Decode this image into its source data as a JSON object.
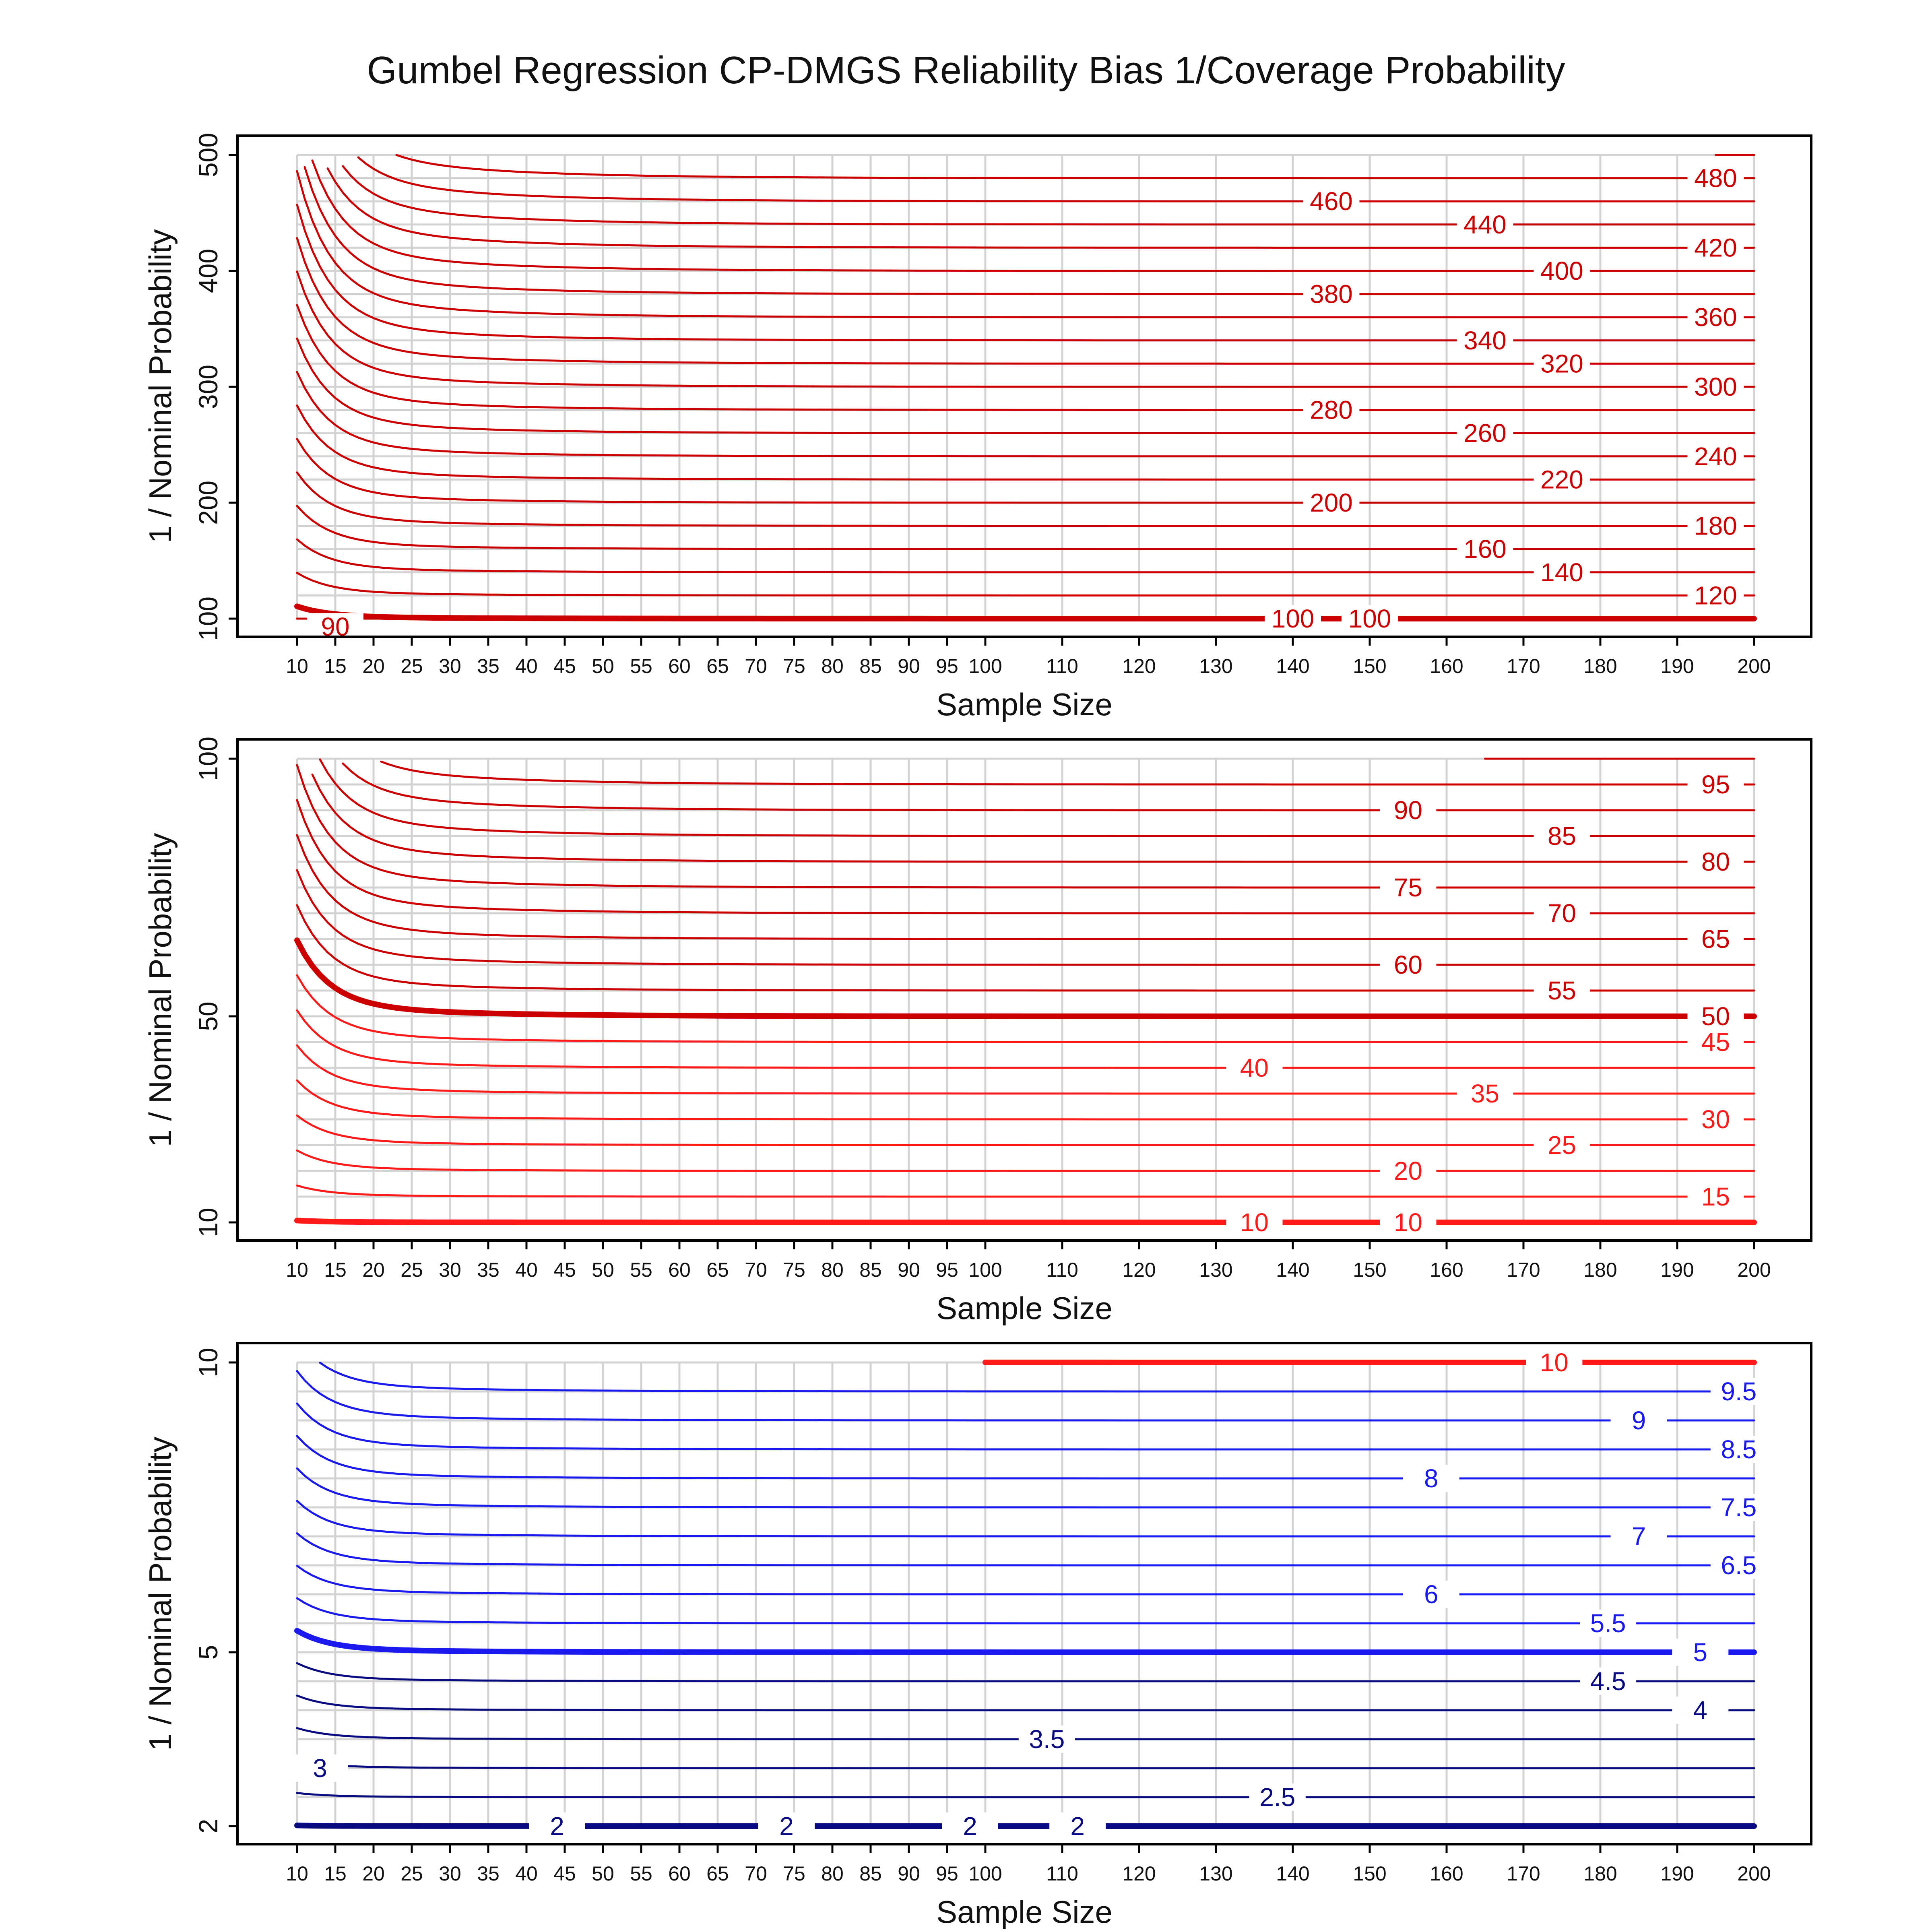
{
  "title": "Gumbel Regression CP-DMGS Reliability Bias 1/Coverage Probability",
  "colors": {
    "red": "#cc0000",
    "bright_red": "#ff1a1a",
    "blue": "#1a1aee",
    "dark_blue": "#0a0a80",
    "grid": "#d3d3d3",
    "frame": "#000000"
  },
  "chart_data": [
    {
      "type": "contour",
      "xlabel": "Sample Size",
      "ylabel": "1 / Nominal Probability",
      "x_ticks": [
        10,
        15,
        20,
        25,
        30,
        35,
        40,
        45,
        50,
        55,
        60,
        65,
        70,
        75,
        80,
        85,
        90,
        95,
        100,
        110,
        120,
        130,
        140,
        150,
        160,
        170,
        180,
        190,
        200
      ],
      "xlim": [
        10,
        200
      ],
      "ylim": [
        100,
        500
      ],
      "y_ticks": [
        100,
        200,
        300,
        400,
        500
      ],
      "grid": true,
      "levels": [
        90,
        100,
        120,
        140,
        160,
        180,
        200,
        220,
        240,
        260,
        280,
        300,
        320,
        340,
        360,
        380,
        400,
        420,
        440,
        460,
        480,
        500
      ],
      "thick_levels": [
        100
      ],
      "contour_labels": [
        {
          "x": 15,
          "y": 93,
          "text": "90"
        },
        {
          "x": 140,
          "y": 100,
          "text": "100"
        },
        {
          "x": 150,
          "y": 100,
          "text": "100"
        },
        {
          "x": 195,
          "y": 120,
          "text": "120"
        },
        {
          "x": 175,
          "y": 140,
          "text": "140"
        },
        {
          "x": 165,
          "y": 160,
          "text": "160"
        },
        {
          "x": 195,
          "y": 180,
          "text": "180"
        },
        {
          "x": 145,
          "y": 200,
          "text": "200"
        },
        {
          "x": 175,
          "y": 220,
          "text": "220"
        },
        {
          "x": 195,
          "y": 240,
          "text": "240"
        },
        {
          "x": 165,
          "y": 260,
          "text": "260"
        },
        {
          "x": 145,
          "y": 280,
          "text": "280"
        },
        {
          "x": 195,
          "y": 300,
          "text": "300"
        },
        {
          "x": 175,
          "y": 320,
          "text": "320"
        },
        {
          "x": 165,
          "y": 340,
          "text": "340"
        },
        {
          "x": 195,
          "y": 360,
          "text": "360"
        },
        {
          "x": 145,
          "y": 380,
          "text": "380"
        },
        {
          "x": 175,
          "y": 400,
          "text": "400"
        },
        {
          "x": 195,
          "y": 420,
          "text": "420"
        },
        {
          "x": 165,
          "y": 440,
          "text": "440"
        },
        {
          "x": 145,
          "y": 460,
          "text": "460"
        },
        {
          "x": 195,
          "y": 480,
          "text": "480"
        }
      ]
    },
    {
      "type": "contour",
      "xlabel": "Sample Size",
      "ylabel": "1 / Nominal Probability",
      "x_ticks": [
        10,
        15,
        20,
        25,
        30,
        35,
        40,
        45,
        50,
        55,
        60,
        65,
        70,
        75,
        80,
        85,
        90,
        95,
        100,
        110,
        120,
        130,
        140,
        150,
        160,
        170,
        180,
        190,
        200
      ],
      "xlim": [
        10,
        200
      ],
      "ylim": [
        10,
        100
      ],
      "y_ticks": [
        10,
        50,
        100
      ],
      "grid": true,
      "levels": [
        10,
        15,
        20,
        25,
        30,
        35,
        40,
        45,
        50,
        55,
        60,
        65,
        70,
        75,
        80,
        85,
        90,
        95,
        100
      ],
      "thick_levels": [
        10,
        50
      ],
      "contour_labels": [
        {
          "x": 135,
          "y": 10,
          "text": "10"
        },
        {
          "x": 155,
          "y": 10,
          "text": "10"
        },
        {
          "x": 195,
          "y": 15,
          "text": "15"
        },
        {
          "x": 155,
          "y": 20,
          "text": "20"
        },
        {
          "x": 175,
          "y": 25,
          "text": "25"
        },
        {
          "x": 195,
          "y": 30,
          "text": "30"
        },
        {
          "x": 165,
          "y": 35,
          "text": "35"
        },
        {
          "x": 135,
          "y": 40,
          "text": "40"
        },
        {
          "x": 195,
          "y": 45,
          "text": "45"
        },
        {
          "x": 195,
          "y": 50,
          "text": "50"
        },
        {
          "x": 175,
          "y": 55,
          "text": "55"
        },
        {
          "x": 155,
          "y": 60,
          "text": "60"
        },
        {
          "x": 195,
          "y": 65,
          "text": "65"
        },
        {
          "x": 175,
          "y": 70,
          "text": "70"
        },
        {
          "x": 155,
          "y": 75,
          "text": "75"
        },
        {
          "x": 195,
          "y": 80,
          "text": "80"
        },
        {
          "x": 175,
          "y": 85,
          "text": "85"
        },
        {
          "x": 155,
          "y": 90,
          "text": "90"
        },
        {
          "x": 195,
          "y": 95,
          "text": "95"
        }
      ]
    },
    {
      "type": "contour",
      "xlabel": "Sample Size",
      "ylabel": "1 / Nominal Probability",
      "x_ticks": [
        10,
        15,
        20,
        25,
        30,
        35,
        40,
        45,
        50,
        55,
        60,
        65,
        70,
        75,
        80,
        85,
        90,
        95,
        100,
        110,
        120,
        130,
        140,
        150,
        160,
        170,
        180,
        190,
        200
      ],
      "xlim": [
        10,
        200
      ],
      "ylim": [
        2,
        10
      ],
      "y_ticks": [
        2,
        5,
        10
      ],
      "grid": true,
      "levels": [
        2,
        2.5,
        3,
        3.5,
        4,
        4.5,
        5,
        5.5,
        6,
        6.5,
        7,
        7.5,
        8,
        8.5,
        9,
        9.5,
        10
      ],
      "thick_levels": [
        2,
        5,
        10
      ],
      "contour_labels": [
        {
          "x": 44,
          "y": 2,
          "text": "2"
        },
        {
          "x": 74,
          "y": 2,
          "text": "2"
        },
        {
          "x": 98,
          "y": 2,
          "text": "2"
        },
        {
          "x": 112,
          "y": 2,
          "text": "2"
        },
        {
          "x": 138,
          "y": 2.5,
          "text": "2.5"
        },
        {
          "x": 13,
          "y": 3,
          "text": "3"
        },
        {
          "x": 108,
          "y": 3.5,
          "text": "3.5"
        },
        {
          "x": 193,
          "y": 4,
          "text": "4"
        },
        {
          "x": 181,
          "y": 4.5,
          "text": "4.5"
        },
        {
          "x": 193,
          "y": 5,
          "text": "5"
        },
        {
          "x": 181,
          "y": 5.5,
          "text": "5.5"
        },
        {
          "x": 158,
          "y": 6,
          "text": "6"
        },
        {
          "x": 198,
          "y": 6.5,
          "text": "6.5"
        },
        {
          "x": 185,
          "y": 7,
          "text": "7"
        },
        {
          "x": 198,
          "y": 7.5,
          "text": "7.5"
        },
        {
          "x": 158,
          "y": 8,
          "text": "8"
        },
        {
          "x": 198,
          "y": 8.5,
          "text": "8.5"
        },
        {
          "x": 185,
          "y": 9,
          "text": "9"
        },
        {
          "x": 198,
          "y": 9.5,
          "text": "9.5"
        },
        {
          "x": 174,
          "y": 10,
          "text": "10"
        }
      ]
    }
  ]
}
